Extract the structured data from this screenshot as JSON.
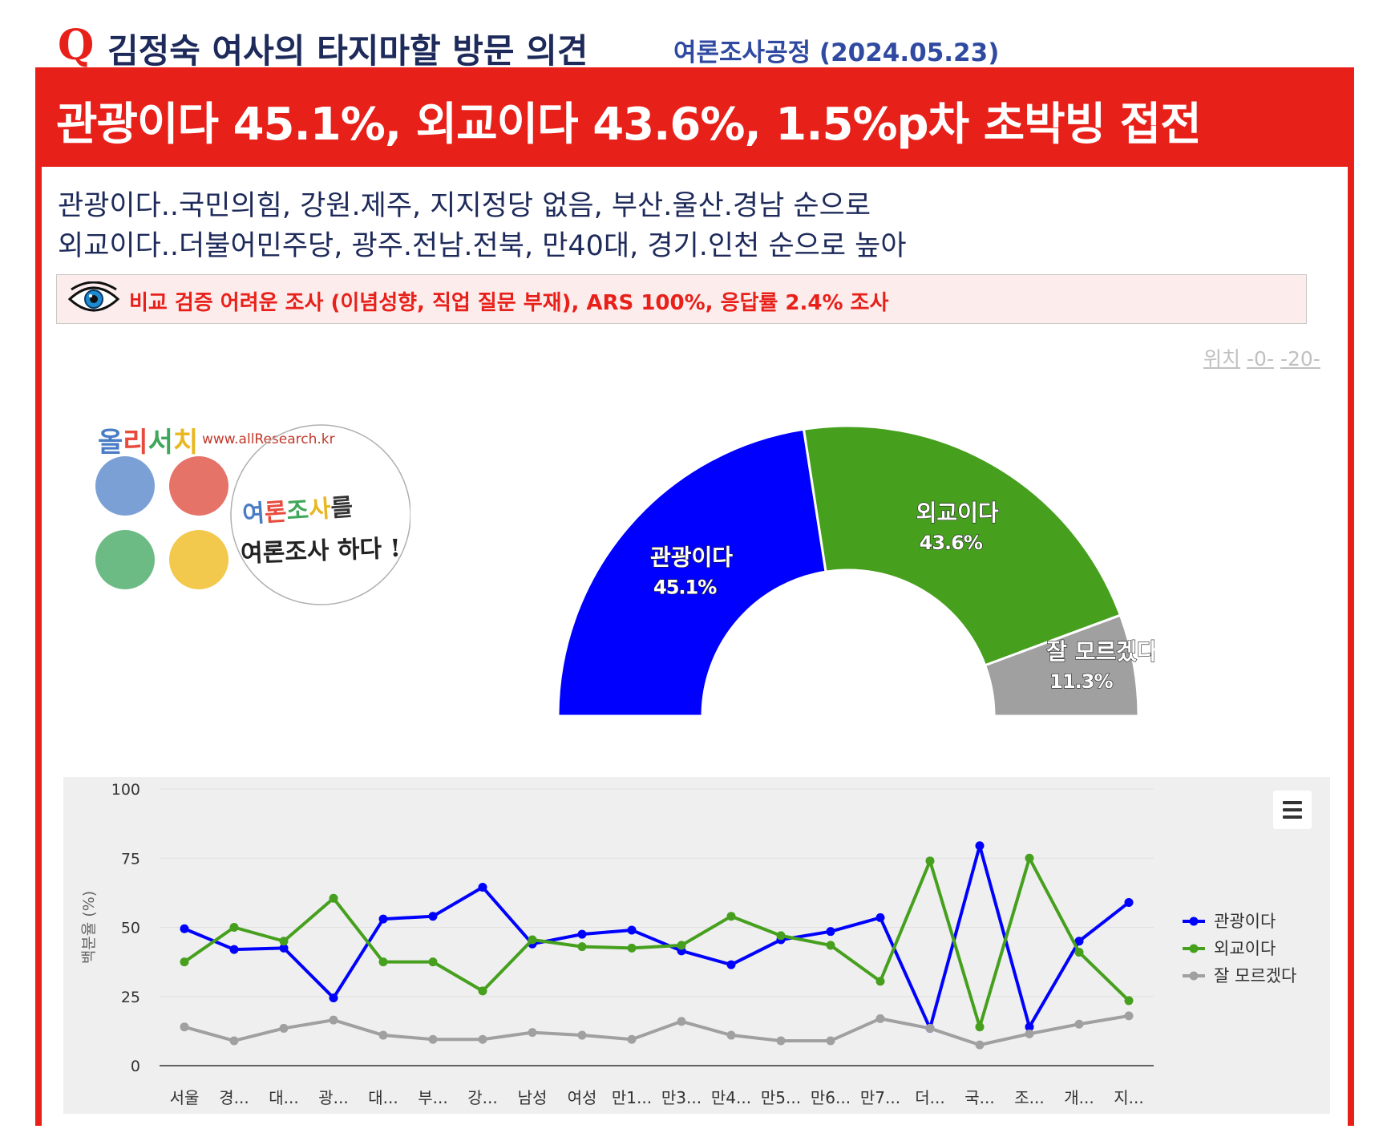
{
  "header": {
    "q_mark": "Q",
    "title": "김정숙 여사의 타지마할 방문 의견",
    "source": "여론조사공정 (2024.05.23)"
  },
  "headline": "관광이다 45.1%, 외교이다 43.6%, 1.5%p차 초박빙 접전",
  "subtitles": [
    "관광이다..국민의힘, 강원.제주, 지지정당 없음, 부산.울산.경남 순으로",
    "외교이다..더불어민주당, 광주.전남.전북, 만40대, 경기.인천 순으로 높아"
  ],
  "note": {
    "icon": "eye-icon",
    "text": "비교 검증 어려운 조사 (이념성향, 직업 질문 부재), ARS 100%, 응답률 2.4% 조사"
  },
  "position_nav": {
    "label": "위치",
    "links": [
      "-0-",
      "-20-"
    ]
  },
  "logo": {
    "brand_chars": [
      "올",
      "리",
      "서",
      "치"
    ],
    "url": "www.allResearch.kr",
    "slogan_line1_chars": [
      "여",
      "론",
      "조",
      "사",
      "를"
    ],
    "slogan_line2": "여론조사 하다 !",
    "colors": [
      "#7aa0d6",
      "#e57368",
      "#6dbb84",
      "#f2c94c"
    ]
  },
  "chart_data": [
    {
      "type": "pie",
      "variant": "semi-donut",
      "slices": [
        {
          "label": "관광이다",
          "display": "45.1%",
          "value": 45.1,
          "color": "#0000ff"
        },
        {
          "label": "외교이다",
          "display": "43.6%",
          "value": 43.6,
          "color": "#46a01e"
        },
        {
          "label": "잘 모르겠다",
          "display": "11.3%",
          "value": 11.3,
          "color": "#a0a0a0"
        }
      ]
    },
    {
      "type": "line",
      "ylabel": "백분율 (%)",
      "ylim": [
        0,
        100
      ],
      "yticks": [
        0,
        25,
        50,
        75,
        100
      ],
      "grid": true,
      "legend_position": "right",
      "categories": [
        "서울",
        "경...",
        "대...",
        "광...",
        "대...",
        "부...",
        "강...",
        "남성",
        "여성",
        "만1...",
        "만3...",
        "만4...",
        "만5...",
        "만6...",
        "만7...",
        "더...",
        "국...",
        "조...",
        "개...",
        "지..."
      ],
      "series": [
        {
          "name": "관광이다",
          "color": "#0000ff",
          "values": [
            49.5,
            42,
            42.5,
            24.5,
            53,
            54,
            64.5,
            44,
            47.5,
            49,
            41.5,
            36.5,
            45.5,
            48.5,
            53.5,
            13.5,
            79.5,
            14,
            45,
            59
          ]
        },
        {
          "name": "외교이다",
          "color": "#46a01e",
          "values": [
            37.5,
            50,
            45,
            60.5,
            37.5,
            37.5,
            27,
            45.5,
            43,
            42.5,
            43.5,
            54,
            47,
            43.5,
            30.5,
            74,
            14,
            75,
            41,
            23.5
          ]
        },
        {
          "name": "잘 모르겠다",
          "color": "#a0a0a0",
          "values": [
            14,
            9,
            13.5,
            16.5,
            11,
            9.5,
            9.5,
            12,
            11,
            9.5,
            16,
            11,
            9,
            9,
            17,
            13.5,
            7.5,
            11.5,
            15,
            18
          ]
        }
      ]
    }
  ]
}
